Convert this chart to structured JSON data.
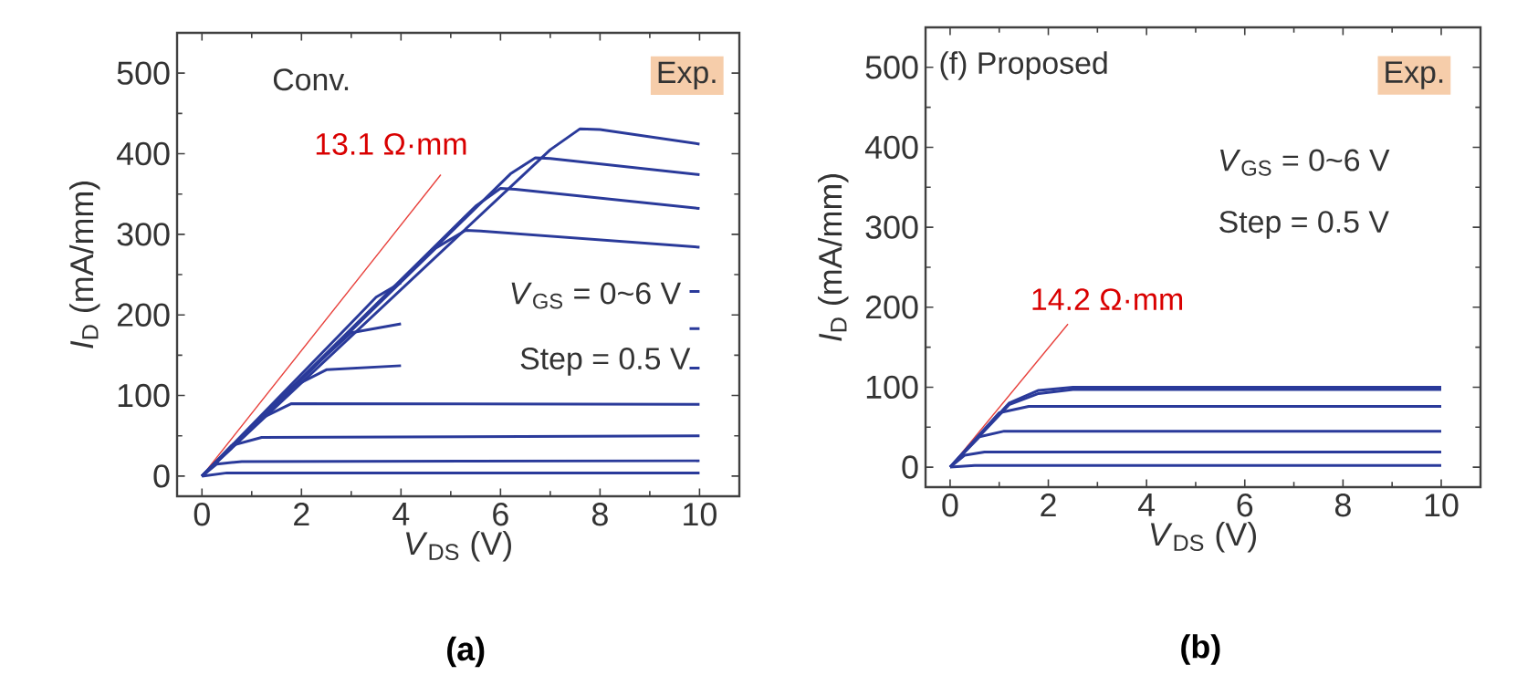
{
  "chart_data": [
    {
      "type": "line",
      "xlabel": "*V*$_{DS}$ (V)",
      "ylabel": "*I*$_{D}$ (mA/mm)",
      "xlim": [
        -0.5,
        10.8
      ],
      "ylim": [
        -25,
        550
      ],
      "xticks": [
        0,
        2,
        4,
        6,
        8,
        10
      ],
      "yticks": [
        0,
        100,
        200,
        300,
        400,
        500
      ],
      "annotations": [
        "Conv.",
        "Exp.",
        "13.1 Ω·mm",
        "*V*$_{GS}$ = 0~6 V",
        "Step = 0.5 V",
        "(a)"
      ],
      "series": [
        {
          "color": "#e8413c",
          "x": [
            0,
            4.8
          ],
          "values": [
            0,
            374
          ]
        },
        {
          "color": "#2a3a9a",
          "x": [
            0,
            7.0,
            7.6,
            8,
            10
          ],
          "values": [
            0,
            405,
            431,
            430,
            412
          ]
        },
        {
          "color": "#2a3a9a",
          "x": [
            0,
            6.2,
            6.7,
            7,
            10
          ],
          "values": [
            0,
            375,
            395,
            394,
            374
          ]
        },
        {
          "color": "#2a3a9a",
          "x": [
            0,
            5.5,
            6.0,
            6.3,
            10
          ],
          "values": [
            0,
            335,
            357,
            356,
            332
          ]
        },
        {
          "color": "#2a3a9a",
          "x": [
            0,
            4.7,
            5.3,
            5.6,
            10
          ],
          "values": [
            0,
            283,
            305,
            304,
            284
          ]
        },
        {
          "color": "#2a3a9a",
          "x": [
            0,
            3,
            3.5,
            4,
            7,
            9.8,
            10
          ],
          "values": [
            0,
            190,
            222,
            240,
            null,
            229,
            229
          ]
        },
        {
          "color": "#2a3a9a",
          "x": [
            0,
            2.5,
            3.0,
            4,
            7,
            9.8,
            10
          ],
          "values": [
            0,
            150,
            178,
            189,
            null,
            183,
            183
          ]
        },
        {
          "color": "#2a3a9a",
          "x": [
            0,
            1.8,
            2.5,
            4,
            7,
            9.8,
            10
          ],
          "values": [
            0,
            110,
            132,
            137,
            null,
            134,
            134
          ]
        },
        {
          "color": "#2a3a9a",
          "x": [
            0,
            1.2,
            1.8,
            10
          ],
          "values": [
            0,
            72,
            90,
            89
          ]
        },
        {
          "color": "#2a3a9a",
          "x": [
            0,
            0.6,
            1.2,
            10
          ],
          "values": [
            0,
            38,
            48,
            50
          ]
        },
        {
          "color": "#2a3a9a",
          "x": [
            0,
            0.3,
            0.8,
            10
          ],
          "values": [
            0,
            15,
            18,
            19
          ]
        },
        {
          "color": "#2a3a9a",
          "x": [
            0,
            0.5,
            10
          ],
          "values": [
            0,
            4,
            4
          ]
        }
      ]
    },
    {
      "type": "line",
      "xlabel": "*V*$_{DS}$ (V)",
      "ylabel": "*I*$_{D}$ (mA/mm)",
      "xlim": [
        -0.5,
        10.8
      ],
      "ylim": [
        -25,
        550
      ],
      "xticks": [
        0,
        2,
        4,
        6,
        8,
        10
      ],
      "yticks": [
        0,
        100,
        200,
        300,
        400,
        500
      ],
      "annotations": [
        "(f) Proposed",
        "Exp.",
        "*V*$_{GS}$ = 0~6 V",
        "Step = 0.5 V",
        "14.2 Ω·mm",
        "(b)"
      ],
      "series": [
        {
          "color": "#e8413c",
          "x": [
            0,
            2.4
          ],
          "values": [
            0,
            179
          ]
        },
        {
          "color": "#2a3a9a",
          "x": [
            0,
            1.2,
            1.8,
            2.5,
            10
          ],
          "values": [
            0,
            80,
            96,
            100,
            100
          ]
        },
        {
          "color": "#2a3a9a",
          "x": [
            0,
            1.2,
            1.8,
            2.5,
            10
          ],
          "values": [
            0,
            78,
            92,
            97,
            97
          ]
        },
        {
          "color": "#2a3a9a",
          "x": [
            0,
            1.0,
            1.6,
            10
          ],
          "values": [
            0,
            68,
            76,
            76
          ]
        },
        {
          "color": "#2a3a9a",
          "x": [
            0,
            0.6,
            1.1,
            10
          ],
          "values": [
            0,
            38,
            45,
            45
          ]
        },
        {
          "color": "#2a3a9a",
          "x": [
            0,
            0.3,
            0.7,
            10
          ],
          "values": [
            0,
            15,
            19,
            19
          ]
        },
        {
          "color": "#2a3a9a",
          "x": [
            0,
            0.5,
            10
          ],
          "values": [
            0,
            2,
            2
          ]
        }
      ]
    }
  ]
}
